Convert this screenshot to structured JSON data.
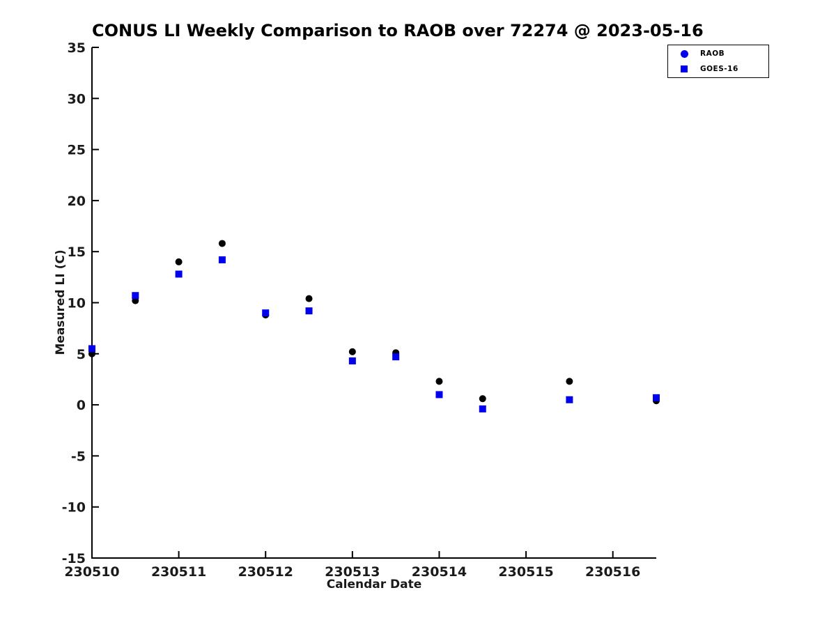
{
  "figure": {
    "background": "#ffffff",
    "text_color": "#1a1a1a",
    "accent_blue": "#0000EE",
    "marker_black": "#000000"
  },
  "chart_data": {
    "type": "scatter",
    "title": "CONUS LI Weekly Comparison to RAOB over 72274 @ 2023-05-16",
    "xlabel": "Calendar Date",
    "ylabel": "Measured LI (C)",
    "xlim": [
      230510,
      230516.5
    ],
    "ylim": [
      -15,
      35
    ],
    "x_ticks": [
      230510,
      230511,
      230512,
      230513,
      230514,
      230515,
      230516
    ],
    "y_ticks": [
      -15,
      -10,
      -5,
      0,
      5,
      10,
      15,
      20,
      25,
      30,
      35
    ],
    "grid": false,
    "legend": {
      "position": "top-right",
      "entries": [
        "RAOB",
        "GOES-16"
      ]
    },
    "series": [
      {
        "name": "RAOB",
        "marker": "circle",
        "color": "#000000",
        "legend_marker_color": "#0000EE",
        "points": [
          [
            230510.0,
            5.0
          ],
          [
            230510.5,
            10.2
          ],
          [
            230511.0,
            14.0
          ],
          [
            230511.5,
            15.8
          ],
          [
            230512.0,
            8.8
          ],
          [
            230512.5,
            10.4
          ],
          [
            230513.0,
            5.2
          ],
          [
            230513.5,
            5.1
          ],
          [
            230514.0,
            2.3
          ],
          [
            230514.5,
            0.6
          ],
          [
            230515.5,
            2.3
          ],
          [
            230516.5,
            0.4
          ]
        ]
      },
      {
        "name": "GOES-16",
        "marker": "square",
        "color": "#0000EE",
        "legend_marker_color": "#0000EE",
        "points": [
          [
            230510.0,
            5.5
          ],
          [
            230510.5,
            10.7
          ],
          [
            230511.0,
            12.8
          ],
          [
            230511.5,
            14.2
          ],
          [
            230512.0,
            9.0
          ],
          [
            230512.5,
            9.2
          ],
          [
            230513.0,
            4.3
          ],
          [
            230513.5,
            4.7
          ],
          [
            230514.0,
            1.0
          ],
          [
            230514.5,
            -0.4
          ],
          [
            230515.5,
            0.5
          ],
          [
            230516.5,
            0.7
          ]
        ]
      }
    ]
  }
}
